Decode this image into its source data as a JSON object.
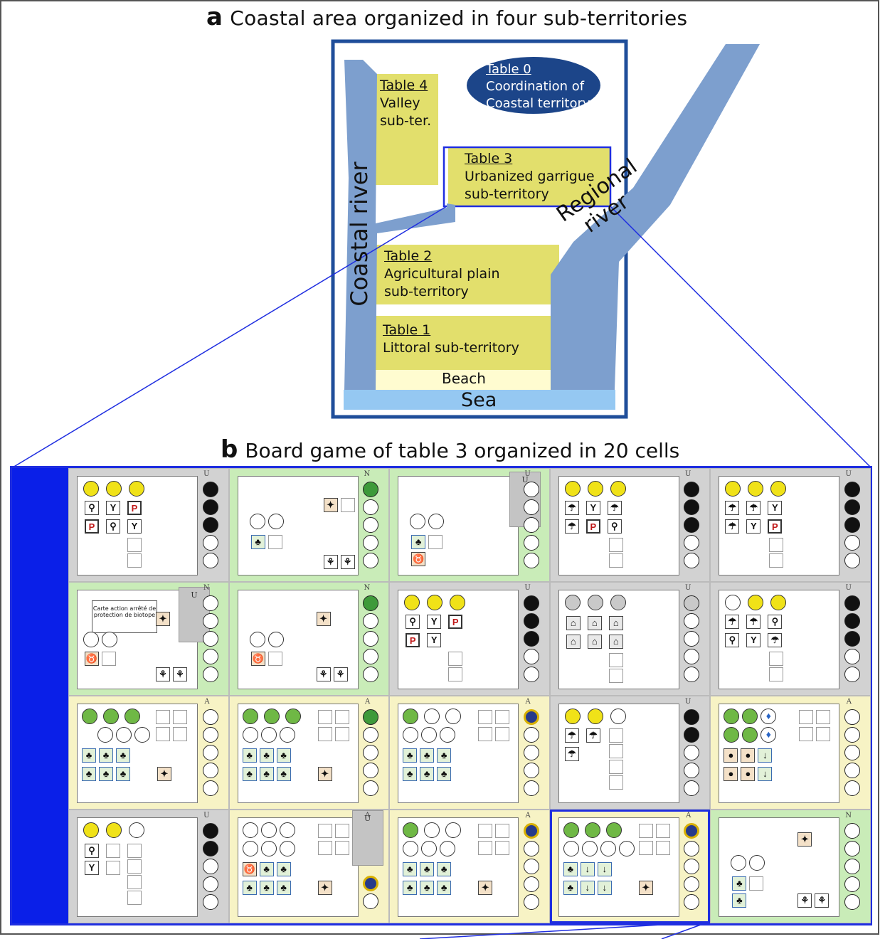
{
  "figure": {
    "panel_a": {
      "letter": "a",
      "title": "Coastal area organized in four sub-territories",
      "tables": [
        {
          "id": "Table 0",
          "lines": [
            "Coordination of",
            "Coastal territory"
          ]
        },
        {
          "id": "Table 4",
          "lines": [
            "Valley",
            "sub-ter."
          ]
        },
        {
          "id": "Table 3",
          "lines": [
            "Urbanized garrigue",
            "sub-territory"
          ]
        },
        {
          "id": "Table 2",
          "lines": [
            "Agricultural plain",
            "sub-territory"
          ]
        },
        {
          "id": "Table 1",
          "lines": [
            "Littoral sub-territory"
          ]
        }
      ],
      "rivers": {
        "coastal": "Coastal river",
        "regional_line1": "Regional",
        "regional_line2": "river"
      },
      "beach": "Beach",
      "sea": "Sea",
      "colors": {
        "subterritory": "#e2df6c",
        "river": "#7d9fce",
        "sea": "#95c8f2",
        "beach": "#fffcd0",
        "table0": "#1c4589",
        "frame": "#1f4e9a",
        "highlight": "#1f2ee0"
      }
    },
    "panel_b": {
      "letter": "b",
      "title": "Board game of table 3 organized in 20 cells",
      "carte_action": "Carte action arrêté de protection de biotope",
      "u_tab": "U",
      "cell_types": [
        "U",
        "N",
        "U",
        "U",
        "U",
        "N",
        "N",
        "U",
        "U",
        "U",
        "A",
        "A",
        "A",
        "U",
        "A",
        "U",
        "A",
        "A",
        "A",
        "N"
      ],
      "colors": {
        "U": "#d2d2d2",
        "N": "#c9ecb8",
        "A": "#f7f3c5",
        "board_border": "#1f2ee0"
      }
    }
  }
}
